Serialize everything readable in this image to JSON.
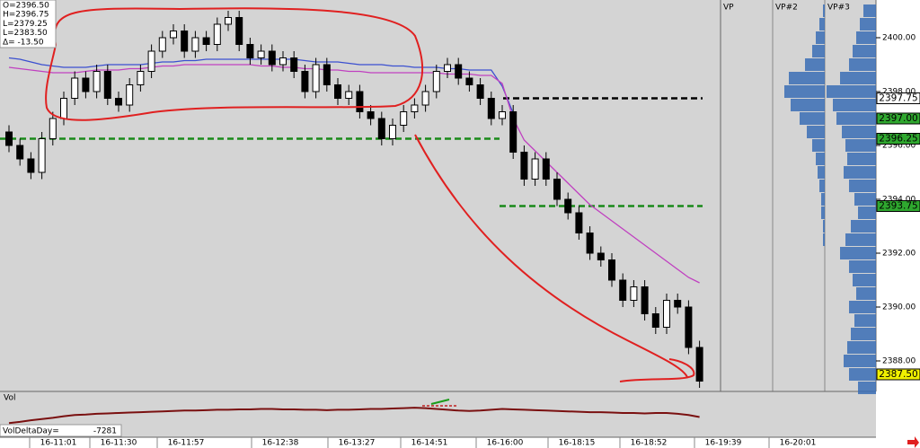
{
  "chart_data": {
    "type": "candlestick",
    "header": [
      "O=2396.50",
      "H=2396.75",
      "L=2379.25",
      "L=2383.50",
      "Δ= -13.50"
    ],
    "ylim": [
      2386.9,
      2401.4
    ],
    "yticks": [
      {
        "value": 2388,
        "label": "2388.00"
      },
      {
        "value": 2390,
        "label": "2390.00"
      },
      {
        "value": 2392,
        "label": "2392.00"
      },
      {
        "value": 2394,
        "label": "2394.00"
      },
      {
        "value": 2396,
        "label": "2396.00"
      },
      {
        "value": 2398,
        "label": "2398.00"
      },
      {
        "value": 2400,
        "label": "2400.00"
      }
    ],
    "time_labels": [
      "16-11:01",
      "16-11:30",
      "16-11:57",
      "16-12:38",
      "16-13:27",
      "16-14:51",
      "16-16:00",
      "16-18:15",
      "16-18:52",
      "16-19:39",
      "16-20:01"
    ],
    "up_color": "#ffffff",
    "down_color": "#000000",
    "open": [
      2396.5,
      2396.0,
      2395.5,
      2395.0,
      2396.25,
      2397.0,
      2397.75,
      2398.5,
      2398.0,
      2398.75,
      2397.75,
      2397.5,
      2398.25,
      2398.75,
      2399.5,
      2400.0,
      2400.25,
      2399.5,
      2400.0,
      2399.75,
      2400.5,
      2400.75,
      2399.75,
      2399.25,
      2399.5,
      2399.0,
      2399.25,
      2398.75,
      2398.0,
      2399.0,
      2398.25,
      2397.75,
      2398.0,
      2397.25,
      2397.0,
      2396.25,
      2396.75,
      2397.25,
      2397.5,
      2398.0,
      2398.75,
      2399.0,
      2398.5,
      2398.25,
      2397.75,
      2397.0,
      2397.25,
      2395.75,
      2394.75,
      2395.5,
      2394.75,
      2394.0,
      2393.5,
      2392.75,
      2392.0,
      2391.75,
      2391.0,
      2390.25,
      2390.75,
      2389.75,
      2389.25,
      2390.25,
      2390.0,
      2388.5
    ],
    "high": [
      2396.75,
      2396.25,
      2395.75,
      2396.5,
      2397.25,
      2398,
      2398.75,
      2398.75,
      2399,
      2399,
      2398,
      2398.5,
      2399,
      2399.75,
      2400.25,
      2400.5,
      2400.5,
      2400.25,
      2400.25,
      2400.75,
      2401,
      2401,
      2400,
      2399.75,
      2399.75,
      2399.5,
      2399.5,
      2399,
      2399.25,
      2399.25,
      2398.5,
      2398.25,
      2398.25,
      2397.5,
      2397.25,
      2397,
      2397.5,
      2397.75,
      2398.25,
      2399,
      2399.25,
      2399.25,
      2398.75,
      2398.5,
      2398,
      2397.5,
      2397.5,
      2396,
      2395.75,
      2395.75,
      2395,
      2394.25,
      2393.75,
      2393,
      2392.25,
      2392,
      2391.25,
      2391,
      2391,
      2390,
      2390.5,
      2390.5,
      2390.25,
      2388.75
    ],
    "low": [
      2395.75,
      2395.25,
      2394.75,
      2394.75,
      2396,
      2396.75,
      2397.5,
      2397.75,
      2397.75,
      2397.5,
      2397.25,
      2397.25,
      2398,
      2398.5,
      2399.25,
      2399.75,
      2399.25,
      2399.25,
      2399.5,
      2399.5,
      2400.25,
      2399.5,
      2399,
      2399,
      2398.75,
      2398.75,
      2398.5,
      2397.75,
      2397.75,
      2398,
      2397.5,
      2397.5,
      2397,
      2396.75,
      2396,
      2396,
      2396.5,
      2397,
      2397.25,
      2397.75,
      2398.5,
      2398.25,
      2398,
      2397.5,
      2396.75,
      2396.75,
      2395.5,
      2394.5,
      2394.5,
      2394.5,
      2393.75,
      2393.25,
      2392.5,
      2391.75,
      2391.5,
      2390.75,
      2390,
      2390,
      2389.5,
      2389,
      2389,
      2389.75,
      2388.25,
      2387
    ],
    "close": [
      2396.0,
      2395.5,
      2395.0,
      2396.25,
      2397.0,
      2397.75,
      2398.5,
      2398.0,
      2398.75,
      2397.75,
      2397.5,
      2398.25,
      2398.75,
      2399.5,
      2400.0,
      2400.25,
      2399.5,
      2400.0,
      2399.75,
      2400.5,
      2400.75,
      2399.75,
      2399.25,
      2399.5,
      2399.0,
      2399.25,
      2398.75,
      2398.0,
      2399.0,
      2398.25,
      2397.75,
      2398.0,
      2397.25,
      2397.0,
      2396.25,
      2396.75,
      2397.25,
      2397.5,
      2398.0,
      2398.75,
      2399.0,
      2398.5,
      2398.25,
      2397.75,
      2397.0,
      2397.25,
      2395.75,
      2394.75,
      2395.5,
      2394.75,
      2394.0,
      2393.5,
      2392.75,
      2392.0,
      2391.75,
      2391.0,
      2390.25,
      2390.75,
      2389.75,
      2389.25,
      2390.25,
      2390.0,
      2388.5,
      2387.25
    ],
    "series": [
      {
        "color": "#3a4fd0",
        "values": [
          2399.25,
          2399.2,
          2399.1,
          2399.0,
          2398.95,
          2398.9,
          2398.9,
          2398.9,
          2398.95,
          2399.0,
          2399.0,
          2399.0,
          2399.0,
          2399.05,
          2399.1,
          2399.1,
          2399.15,
          2399.15,
          2399.2,
          2399.2,
          2399.2,
          2399.2,
          2399.2,
          2399.2,
          2399.2,
          2399.2,
          2399.2,
          2399.15,
          2399.1,
          2399.1,
          2399.1,
          2399.05,
          2399.0,
          2399.0,
          2399.0,
          2398.95,
          2398.95,
          2398.9,
          2398.9,
          2398.9,
          2398.85,
          2398.85,
          2398.8,
          2398.8,
          2398.8,
          2398.2,
          2397.2,
          null,
          null,
          null,
          null,
          null,
          null,
          null,
          null,
          null,
          null,
          null,
          null,
          null,
          null,
          null,
          null,
          null
        ]
      },
      {
        "color": "#c040c0",
        "values": [
          2398.9,
          2398.85,
          2398.8,
          2398.75,
          2398.7,
          2398.7,
          2398.7,
          2398.75,
          2398.8,
          2398.8,
          2398.8,
          2398.85,
          2398.85,
          2398.9,
          2398.95,
          2398.95,
          2399.0,
          2399.0,
          2399.0,
          2399.0,
          2399.0,
          2399.0,
          2399.0,
          2398.95,
          2398.95,
          2398.9,
          2398.9,
          2398.85,
          2398.85,
          2398.8,
          2398.8,
          2398.75,
          2398.75,
          2398.7,
          2398.7,
          2398.7,
          2398.7,
          2398.7,
          2398.7,
          2398.7,
          2398.65,
          2398.65,
          2398.65,
          2398.6,
          2398.6,
          2398.3,
          2397.0,
          2396.2,
          2395.8,
          2395.4,
          2395.0,
          2394.6,
          2394.2,
          2393.8,
          2393.5,
          2393.2,
          2392.9,
          2392.6,
          2392.3,
          2392.0,
          2391.7,
          2391.4,
          2391.1,
          2390.9
        ]
      }
    ],
    "levels": [
      {
        "value": 2396.25,
        "color": "#1a8a1a"
      },
      {
        "value": 2397.75,
        "color": "#000000"
      },
      {
        "value": 2393.75,
        "color": "#1a8a1a"
      }
    ],
    "price_tags": [
      {
        "value": 2397.75,
        "label": "2397.75",
        "color": "#ffffff"
      },
      {
        "value": 2397.0,
        "label": "2397.00",
        "color": "#2fa82f"
      },
      {
        "value": 2396.25,
        "label": "2396.25",
        "color": "#2fa82f"
      },
      {
        "value": 2393.75,
        "label": "2393.75",
        "color": "#2fa82f"
      },
      {
        "value": 2387.5,
        "label": "2387.50",
        "color": "#f0f000"
      }
    ],
    "profile_titles": [
      "VP",
      "VP#2",
      "VP#3"
    ],
    "profile_prices": [
      2401,
      2400.5,
      2400,
      2399.5,
      2399,
      2398.5,
      2398,
      2397.5,
      2397,
      2396.5,
      2396,
      2395.5,
      2395,
      2394.5,
      2394,
      2393.5,
      2393,
      2392.5,
      2392,
      2391.5,
      2391,
      2390.5,
      2390,
      2389.5,
      2389,
      2388.5,
      2388,
      2387.5,
      2387
    ],
    "profile_vp2": [
      2,
      6,
      10,
      14,
      22,
      40,
      45,
      38,
      28,
      20,
      14,
      10,
      8,
      6,
      4,
      4,
      2,
      2,
      0,
      0,
      0,
      0,
      0,
      0,
      0,
      0,
      0,
      0,
      0
    ],
    "profile_vp3": [
      14,
      18,
      22,
      26,
      30,
      40,
      55,
      48,
      44,
      38,
      34,
      32,
      36,
      30,
      24,
      20,
      28,
      34,
      40,
      30,
      26,
      22,
      30,
      24,
      28,
      32,
      36,
      30,
      20
    ],
    "profile_color": "#3a6db5",
    "vol_title": "Vol",
    "vol_delta_label": "VolDeltaDay=",
    "vol_delta_value": "-7281",
    "vol_ylim": [
      0,
      10
    ],
    "vol_color": "#7a1010",
    "vol_values": [
      3.5,
      3.8,
      4.2,
      4.5,
      4.8,
      5.2,
      5.5,
      5.6,
      5.8,
      5.9,
      6.0,
      6.1,
      6.2,
      6.3,
      6.4,
      6.5,
      6.6,
      6.6,
      6.7,
      6.8,
      6.8,
      6.9,
      6.9,
      7.0,
      7.0,
      6.9,
      6.9,
      6.8,
      6.8,
      6.7,
      6.8,
      6.8,
      6.9,
      7.0,
      7.0,
      7.1,
      7.2,
      7.3,
      7.2,
      7.0,
      6.8,
      6.6,
      6.5,
      6.6,
      6.8,
      7.0,
      6.9,
      6.8,
      6.7,
      6.6,
      6.5,
      6.4,
      6.3,
      6.2,
      6.2,
      6.1,
      6.0,
      6.0,
      5.9,
      6.0,
      6.0,
      5.8,
      5.5,
      5.0
    ]
  }
}
